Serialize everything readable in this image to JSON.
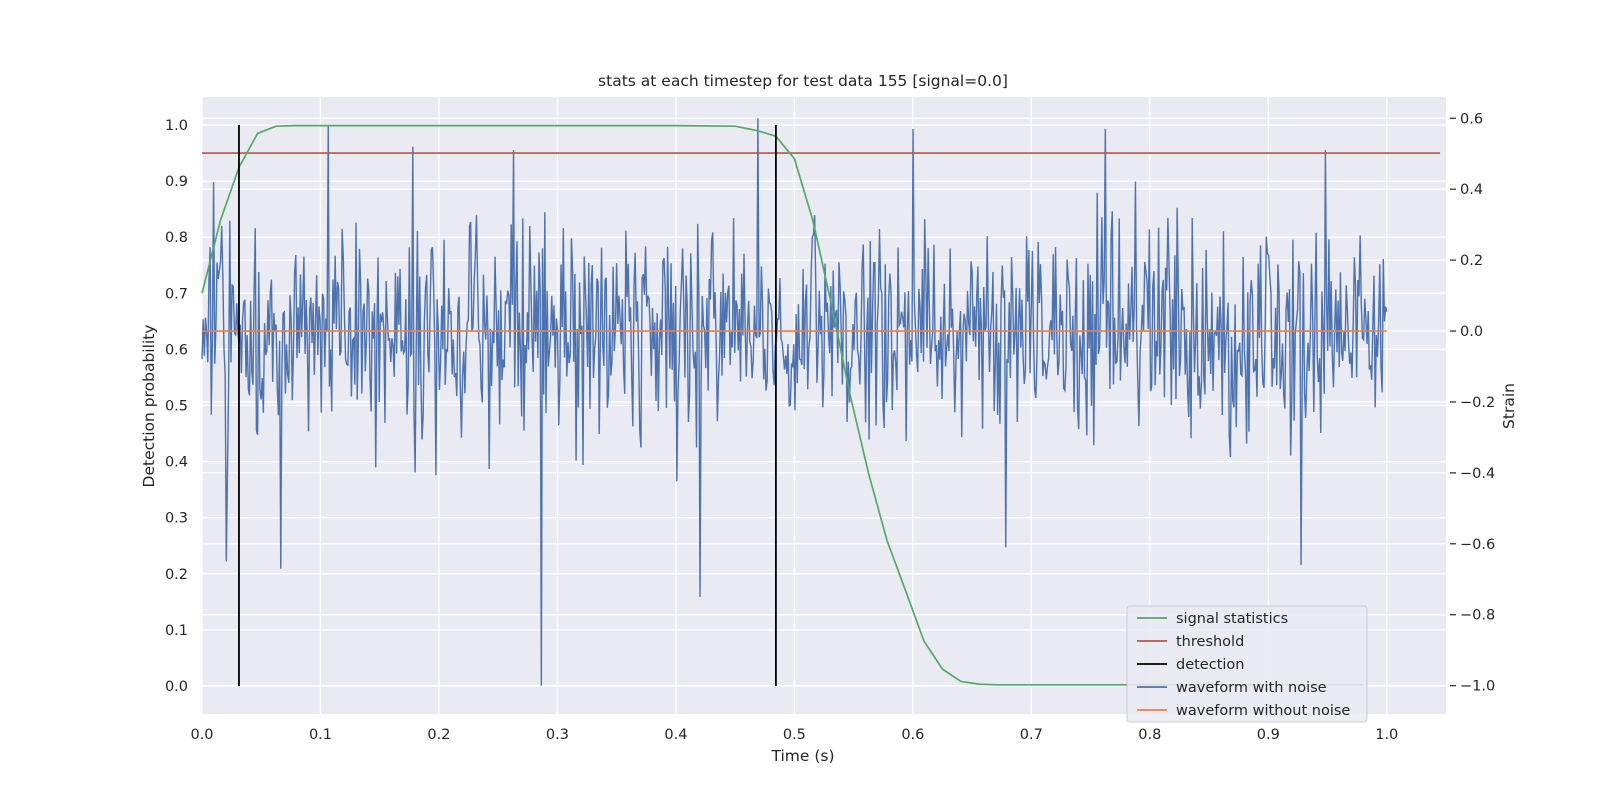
{
  "chart_data": {
    "type": "line",
    "title": "stats at each timestep for test data 155 [signal=0.0]",
    "xlabel": "Time (s)",
    "ylabel_left": "Detection probability",
    "ylabel_right": "Strain",
    "xlim": [
      0.0,
      1.05
    ],
    "ylim_left": [
      -0.05,
      1.05
    ],
    "ylim_right": [
      -1.08,
      0.66
    ],
    "x_ticks": [
      "0.0",
      "0.1",
      "0.2",
      "0.3",
      "0.4",
      "0.5",
      "0.6",
      "0.7",
      "0.8",
      "0.9",
      "1.0"
    ],
    "y_left_ticks": [
      "0.0",
      "0.1",
      "0.2",
      "0.3",
      "0.4",
      "0.5",
      "0.6",
      "0.7",
      "0.8",
      "0.9",
      "1.0"
    ],
    "y_right_ticks": [
      "−1.0",
      "−0.8",
      "−0.6",
      "−0.4",
      "−0.2",
      "0.0",
      "0.2",
      "0.4",
      "0.6"
    ],
    "grid": true,
    "legend_position": "lower right",
    "series": [
      {
        "name": "signal statistics",
        "color": "#55a868",
        "axis": "left",
        "x": [
          0.0,
          0.0156,
          0.0313,
          0.0469,
          0.0625,
          0.0781,
          0.1,
          0.2,
          0.3,
          0.4,
          0.45,
          0.4688,
          0.4844,
          0.5,
          0.5156,
          0.5313,
          0.5469,
          0.5625,
          0.5781,
          0.5938,
          0.6094,
          0.625,
          0.6406,
          0.6563,
          0.6719,
          0.7,
          0.8,
          0.9,
          0.98
        ],
        "y": [
          0.7,
          0.83,
          0.925,
          0.985,
          0.998,
          0.999,
          0.999,
          0.999,
          0.999,
          0.999,
          0.998,
          0.99,
          0.98,
          0.94,
          0.83,
          0.68,
          0.52,
          0.38,
          0.26,
          0.17,
          0.08,
          0.03,
          0.008,
          0.003,
          0.002,
          0.002,
          0.002,
          0.002,
          0.002
        ]
      },
      {
        "name": "threshold",
        "color": "#c44e52",
        "axis": "left",
        "x": [
          0.0,
          1.045
        ],
        "y": [
          0.95,
          0.95
        ]
      },
      {
        "name": "detection",
        "color": "#000000",
        "axis": "left",
        "segments": [
          {
            "x": 0.0312,
            "y": [
              0.0,
              1.0
            ]
          },
          {
            "x": 0.4844,
            "y": [
              0.0,
              1.0
            ]
          }
        ]
      },
      {
        "name": "waveform with noise",
        "color": "#4c72b0",
        "axis": "right",
        "x_range": [
          0.0,
          1.0
        ],
        "sample_count": 1024,
        "amplitude_std": 0.15,
        "notable_points": [
          {
            "x": 0.01,
            "y": 0.42
          },
          {
            "x": 0.021,
            "y": -0.65
          },
          {
            "x": 0.066,
            "y": -0.67
          },
          {
            "x": 0.107,
            "y": 0.58
          },
          {
            "x": 0.178,
            "y": 0.52
          },
          {
            "x": 0.263,
            "y": 0.51
          },
          {
            "x": 0.286,
            "y": -1.0
          },
          {
            "x": 0.42,
            "y": -0.75
          },
          {
            "x": 0.469,
            "y": 0.6
          },
          {
            "x": 0.6,
            "y": 0.57
          },
          {
            "x": 0.678,
            "y": -0.61
          },
          {
            "x": 0.762,
            "y": 0.57
          },
          {
            "x": 0.928,
            "y": -0.66
          },
          {
            "x": 0.948,
            "y": 0.51
          }
        ]
      },
      {
        "name": "waveform without noise",
        "color": "#dd8452",
        "axis": "right",
        "x": [
          0.0,
          1.0
        ],
        "y": [
          0.0,
          0.0
        ]
      }
    ]
  }
}
